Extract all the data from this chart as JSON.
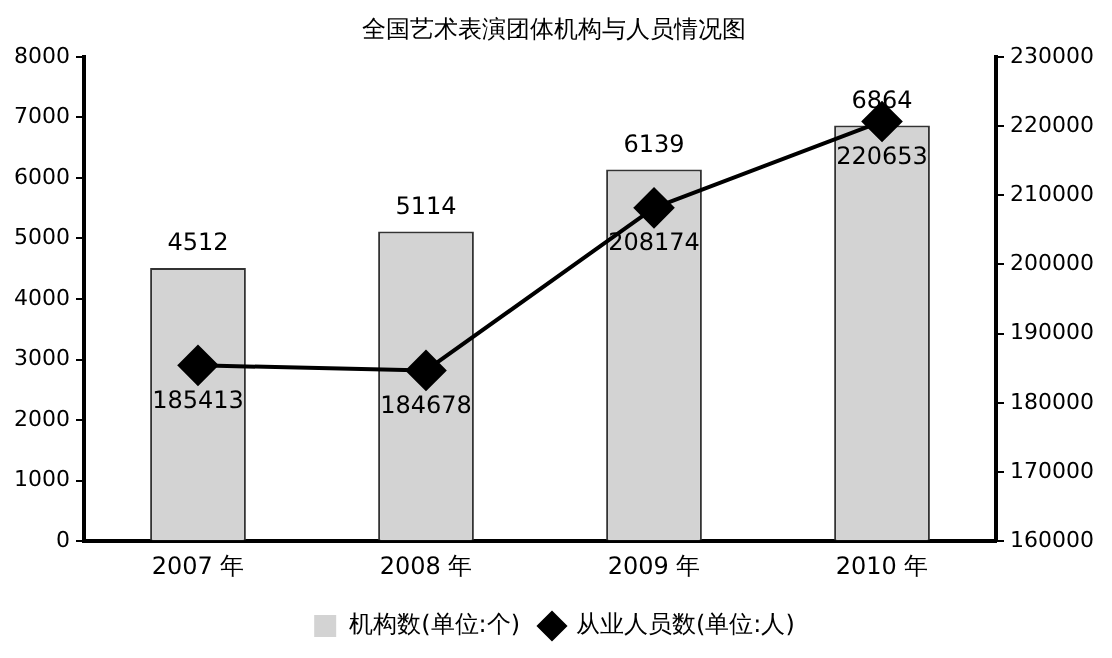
{
  "chart_data": {
    "type": "bar",
    "title": "全国艺术表演团体机构与人员情况图",
    "categories": [
      "2007 年",
      "2008 年",
      "2009 年",
      "2010 年"
    ],
    "series": [
      {
        "name": "机构数(单位:个)",
        "color": "#d3d3d3",
        "values": [
          4512,
          5114,
          6139,
          6864
        ]
      },
      {
        "name": "从业人员数(单位:人)",
        "type": "line",
        "axis": "y2",
        "color": "#000000",
        "values": [
          185413,
          184678,
          208174,
          220653
        ],
        "marker": "diamond"
      }
    ],
    "ylim": [
      0,
      8000
    ],
    "yticks": [
      0,
      1000,
      2000,
      3000,
      4000,
      5000,
      6000,
      7000,
      8000
    ],
    "y2lim": [
      160000,
      230000
    ],
    "y2ticks": [
      160000,
      170000,
      180000,
      190000,
      200000,
      210000,
      220000,
      230000
    ],
    "grid": false,
    "legend": "bottom",
    "data_labels": true,
    "line_style": "solid"
  }
}
